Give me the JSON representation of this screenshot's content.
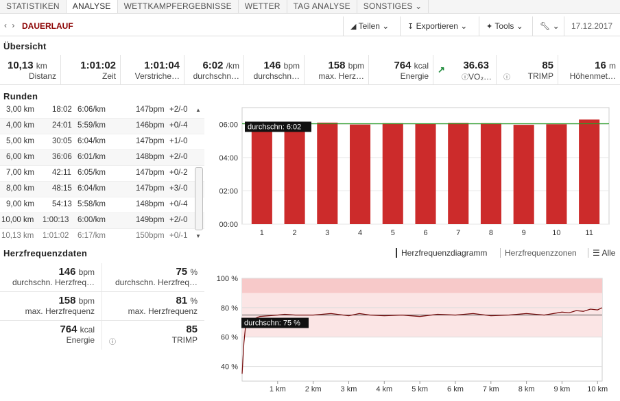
{
  "nav": {
    "tabs": [
      {
        "label": "STATISTIKEN",
        "active": false
      },
      {
        "label": "ANALYSE",
        "active": true
      },
      {
        "label": "WETTKAMPFERGEBNISSE",
        "active": false
      },
      {
        "label": "WETTER",
        "active": false
      },
      {
        "label": "TAG ANALYSE",
        "active": false
      },
      {
        "label": "SONSTIGES ⌄",
        "active": false
      }
    ]
  },
  "toolbar": {
    "nav_arrows": "‹ ›",
    "title": "DAUERLAUF",
    "share": "Teilen ⌄",
    "export": "Exportieren ⌄",
    "tools": "Tools ⌄",
    "settings": "⌄",
    "date": "17.12.2017"
  },
  "overview": {
    "heading": "Übersicht",
    "stats": [
      {
        "value": "10,13",
        "unit": "km",
        "label": "Distanz"
      },
      {
        "value": "1:01:02",
        "unit": "",
        "label": "Zeit"
      },
      {
        "value": "1:01:04",
        "unit": "",
        "label": "Verstriche…"
      },
      {
        "value": "6:02",
        "unit": "/km",
        "label": "durchschn…"
      },
      {
        "value": "146",
        "unit": "bpm",
        "label": "durchschn…"
      },
      {
        "value": "158",
        "unit": "bpm",
        "label": "max. Herz…"
      },
      {
        "value": "764",
        "unit": "kcal",
        "label": "Energie"
      },
      {
        "value": "36.63",
        "unit": "",
        "label": "VO₂…"
      },
      {
        "value": "85",
        "unit": "",
        "label": "TRIMP"
      },
      {
        "value": "16",
        "unit": "m",
        "label": "Höhenmet…"
      }
    ]
  },
  "laps": {
    "heading": "Runden",
    "rows": [
      [
        "3,00 km",
        "18:02",
        "6:06/km",
        "147bpm",
        "+2/-0"
      ],
      [
        "4,00 km",
        "24:01",
        "5:59/km",
        "146bpm",
        "+0/-4"
      ],
      [
        "5,00 km",
        "30:05",
        "6:04/km",
        "147bpm",
        "+1/-0"
      ],
      [
        "6,00 km",
        "36:06",
        "6:01/km",
        "148bpm",
        "+2/-0"
      ],
      [
        "7,00 km",
        "42:11",
        "6:05/km",
        "147bpm",
        "+0/-2"
      ],
      [
        "8,00 km",
        "48:15",
        "6:04/km",
        "147bpm",
        "+3/-0"
      ],
      [
        "9,00 km",
        "54:13",
        "5:58/km",
        "148bpm",
        "+0/-4"
      ],
      [
        "10,00 km",
        "1:00:13",
        "6:00/km",
        "149bpm",
        "+2/-0"
      ],
      [
        "10,13 km",
        "1:01:02",
        "6:17/km",
        "150bpm",
        "+0/-1"
      ]
    ]
  },
  "chart_data": [
    {
      "type": "bar",
      "categories": [
        "1",
        "2",
        "3",
        "4",
        "5",
        "6",
        "7",
        "8",
        "9",
        "10",
        "11"
      ],
      "values": [
        "6:00",
        "5:58",
        "6:06",
        "5:59",
        "6:04",
        "6:01",
        "6:05",
        "6:04",
        "5:58",
        "6:00",
        "6:17"
      ],
      "ytick_labels": [
        "00:00",
        "02:00",
        "04:00",
        "06:00"
      ],
      "ylim": [
        "00:00",
        "07:00"
      ],
      "reference_line": {
        "label": "durchschn: 6:02",
        "value": "6:02"
      },
      "colors": {
        "bar": "#cc2b2b",
        "line": "#2a9d2a"
      }
    },
    {
      "type": "line",
      "x_unit": "km",
      "x": [
        0,
        0.05,
        0.1,
        0.2,
        0.3,
        0.5,
        1,
        1.2,
        1.5,
        2,
        2.5,
        3,
        3.3,
        3.6,
        4,
        4.5,
        5,
        5.5,
        6,
        6.5,
        7,
        7.5,
        8,
        8.5,
        9,
        9.2,
        9.4,
        9.6,
        9.8,
        10,
        10.13
      ],
      "y": [
        35,
        56,
        68,
        71,
        72,
        74,
        75,
        75.5,
        75,
        75,
        76,
        74.5,
        76,
        75,
        74.5,
        75,
        74,
        75.5,
        75,
        76,
        74.5,
        75,
        76,
        75,
        77,
        76.5,
        78,
        77.5,
        79,
        78.5,
        80
      ],
      "xtick_labels": [
        "1 km",
        "2 km",
        "3 km",
        "4 km",
        "5 km",
        "6 km",
        "7 km",
        "8 km",
        "9 km",
        "10 km"
      ],
      "ytick_labels": [
        "40 %",
        "60 %",
        "80 %",
        "100 %"
      ],
      "ylim": [
        30,
        100
      ],
      "xlim": [
        0,
        10.13
      ],
      "reference_line": {
        "label": "durchschn: 75 %",
        "value": 75
      },
      "colors": {
        "line": "#7a1010",
        "zone_dark": "#f7c9c9",
        "zone_light": "#fbe5e5"
      }
    }
  ],
  "hr": {
    "heading": "Herzfrequenzdaten",
    "links": {
      "diagram": "Herzfrequenzdiagramm",
      "zones": "Herzfrequenzzonen",
      "all": "Alle"
    },
    "stats": [
      {
        "value": "146",
        "unit": "bpm",
        "label": "durchschn. Herzfreq…"
      },
      {
        "value": "75",
        "unit": "%",
        "label": "durchschn. Herzfreq…"
      },
      {
        "value": "158",
        "unit": "bpm",
        "label": "max. Herzfrequenz"
      },
      {
        "value": "81",
        "unit": "%",
        "label": "max. Herzfrequenz"
      },
      {
        "value": "764",
        "unit": "kcal",
        "label": "Energie"
      },
      {
        "value": "85",
        "unit": "",
        "label": "TRIMP"
      }
    ]
  }
}
